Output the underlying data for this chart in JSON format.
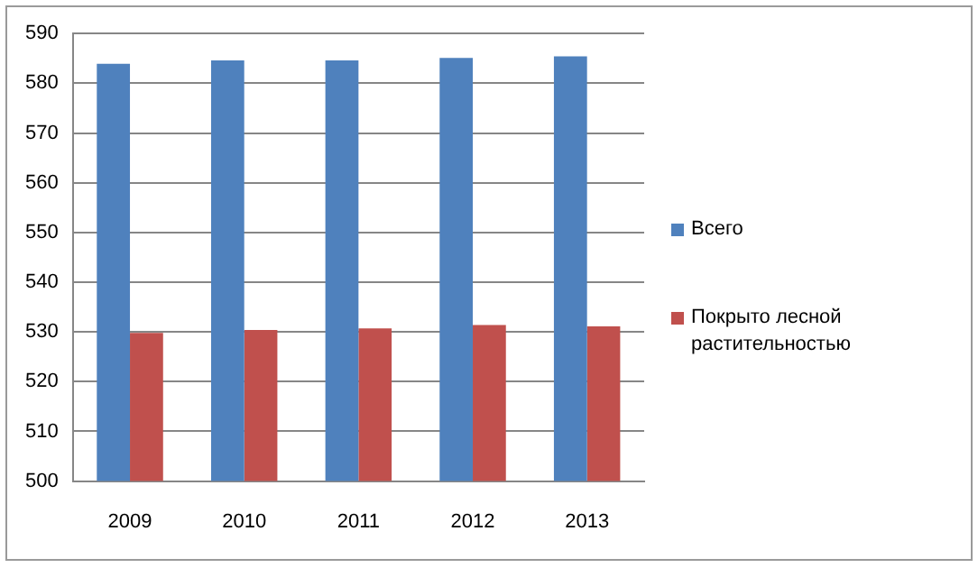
{
  "chart_data": {
    "type": "bar",
    "categories": [
      "2009",
      "2010",
      "2011",
      "2012",
      "2013"
    ],
    "series": [
      {
        "name": "Всего",
        "color": "#4f81bd",
        "values": [
          583.9,
          584.6,
          584.6,
          585.1,
          585.4
        ]
      },
      {
        "name": "Покрыто лесной растительностью",
        "color": "#c0504d",
        "values": [
          529.8,
          530.4,
          530.7,
          531.4,
          531.1
        ]
      }
    ],
    "ylim": [
      500,
      590
    ],
    "yticks": [
      500,
      510,
      520,
      530,
      540,
      550,
      560,
      570,
      580,
      590
    ],
    "grid": "y",
    "legend": "right"
  }
}
